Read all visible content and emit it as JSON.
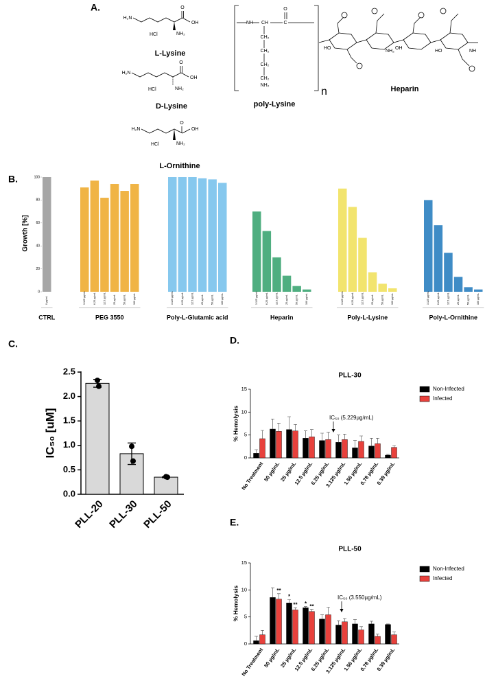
{
  "panel_labels": [
    "A.",
    "B.",
    "C.",
    "D.",
    "E."
  ],
  "structures": [
    {
      "name": "L-Lysine",
      "atoms": [
        "H₂N",
        "O",
        "OH",
        "HCl",
        "NH₂"
      ]
    },
    {
      "name": "D-Lysine",
      "atoms": [
        "H₂N",
        "O",
        "OH",
        "HCl",
        "NH₂"
      ]
    },
    {
      "name": "L-Ornithine",
      "atoms": [
        "H₂N",
        "O",
        "OH",
        "HCl",
        "NH₂"
      ]
    },
    {
      "name": "poly-Lysine",
      "atoms": [
        "NH",
        "CH",
        "C",
        "O",
        "CH₂",
        "CH₂",
        "CH₂",
        "CH₂",
        "NH₂",
        "n"
      ]
    },
    {
      "name": "Heparin",
      "atoms": [
        "HO",
        "NH₂",
        "OH",
        "HO",
        "NH"
      ]
    }
  ],
  "chart_data": [
    {
      "type": "bar",
      "ylabel": "Growth [%]",
      "ylim": [
        0,
        100
      ],
      "yticks": [
        0,
        20,
        40,
        60,
        80,
        100
      ],
      "groups": [
        {
          "name": "CTRL",
          "color": "#a6a6a6",
          "categories": [
            "0 µg/mL"
          ],
          "values": [
            100
          ]
        },
        {
          "name": "PEG 3550",
          "color": "#f0b445",
          "categories": [
            "3.125 µg/mL",
            "6.25 µg/mL",
            "12.5 µg/mL",
            "25 µg/mL",
            "50 µg/mL",
            "100 µg/mL"
          ],
          "values": [
            91,
            97,
            82,
            94,
            88,
            94
          ]
        },
        {
          "name": "Poly-L-Glutamic acid",
          "color": "#86c8ee",
          "categories": [
            "3.125 µg/mL",
            "6.25 µg/mL",
            "12.5 µg/mL",
            "25 µg/mL",
            "50 µg/mL",
            "100 µg/mL"
          ],
          "values": [
            100,
            100,
            100,
            99,
            98,
            95
          ]
        },
        {
          "name": "Heparin",
          "color": "#4fae80",
          "categories": [
            "3.125 µg/mL",
            "6.25 µg/mL",
            "12.5 µg/mL",
            "25 µg/mL",
            "50 µg/mL",
            "100 µg/mL"
          ],
          "values": [
            70,
            53,
            30,
            14,
            5,
            2
          ]
        },
        {
          "name": "Poly-L-Lysine",
          "color": "#f2e46e",
          "categories": [
            "3.125 µg/mL",
            "6.25 µg/mL",
            "12.5 µg/mL",
            "25 µg/mL",
            "50 µg/mL",
            "100 µg/mL"
          ],
          "values": [
            90,
            74,
            47,
            17,
            7,
            3
          ]
        },
        {
          "name": "Poly-L-Ornithine",
          "color": "#3f8cc6",
          "categories": [
            "3.125 µg/mL",
            "6.25 µg/mL",
            "12.5 µg/mL",
            "25 µg/mL",
            "50 µg/mL",
            "100 µg/mL"
          ],
          "values": [
            80,
            58,
            34,
            13,
            4,
            2
          ]
        }
      ]
    },
    {
      "type": "bar",
      "ylabel": "IC₅₀ [uM]",
      "categories": [
        "PLL-20",
        "PLL-30",
        "PLL-50"
      ],
      "values": [
        2.27,
        0.83,
        0.35
      ],
      "errors": [
        0.08,
        0.22,
        0.01
      ],
      "points": [
        [
          2.33,
          2.21
        ],
        [
          0.98,
          0.68
        ],
        [
          0.36,
          0.35
        ]
      ],
      "color": "#d9d9d9",
      "ylim": [
        0,
        2.5
      ],
      "yticks": [
        {
          "value": 0,
          "label": "0.0"
        },
        0.5,
        {
          "value": 1,
          "label": "1.0"
        },
        1.5,
        {
          "value": 2,
          "label": "2.0"
        },
        2.5
      ]
    },
    {
      "type": "bar",
      "title": "PLL-30",
      "ylabel": "% Hemolysis",
      "categories": [
        "No Treatment",
        "50 µg/mL",
        "25 µg/mL",
        "12.5 µg/mL",
        "6.25 µg/mL",
        "3.125 µg/mL",
        "1.56 µg/mL",
        "0.78 µg/mL",
        "0.39 µg/mL"
      ],
      "series": [
        {
          "name": "Non-Infected",
          "color": "#000000",
          "values": [
            1.0,
            6.3,
            6.2,
            4.3,
            3.8,
            3.4,
            2.2,
            2.6,
            0.6
          ],
          "errors": [
            0.8,
            2.2,
            2.8,
            1.6,
            1.6,
            1.6,
            1.6,
            1.7,
            0.2
          ]
        },
        {
          "name": "Infected",
          "color": "#e8413c",
          "values": [
            4.2,
            5.8,
            5.9,
            4.6,
            4.0,
            4.0,
            3.6,
            3.1,
            2.3
          ],
          "errors": [
            1.8,
            1.8,
            1.4,
            1.6,
            1.6,
            1.2,
            1.2,
            1.2,
            0.4
          ]
        }
      ],
      "annotation": "IC₅₀ (5.229µg/mL)",
      "ylim": [
        0,
        15
      ],
      "yticks": [
        0,
        5,
        10,
        15
      ],
      "legend": "right"
    },
    {
      "type": "bar",
      "title": "PLL-50",
      "ylabel": "% Hemolysis",
      "categories": [
        "No Treatment",
        "50 µg/mL",
        "25 µg/mL",
        "12.5 µg/mL",
        "6.25 µg/mL",
        "3.125 µg/mL",
        "1.56 µg/mL",
        "0.78 µg/mL",
        "0.39 µg/mL"
      ],
      "series": [
        {
          "name": "Non-Infected",
          "color": "#000000",
          "values": [
            0.6,
            8.6,
            7.6,
            6.7,
            4.6,
            3.5,
            3.7,
            3.7,
            3.6
          ],
          "errors": [
            0.8,
            1.8,
            0.6,
            0.2,
            0.8,
            0.8,
            0.8,
            0.5,
            0.1
          ],
          "labels": [
            null,
            null,
            "*",
            "*",
            null,
            null,
            null,
            null,
            null
          ]
        },
        {
          "name": "Infected",
          "color": "#e8413c",
          "values": [
            1.7,
            8.3,
            6.3,
            6.0,
            5.4,
            4.1,
            2.6,
            1.4,
            1.7
          ],
          "errors": [
            0.8,
            1.0,
            0.4,
            0.4,
            1.4,
            0.6,
            0.6,
            0.4,
            0.5
          ],
          "labels": [
            null,
            "**",
            "**",
            "**",
            null,
            null,
            null,
            null,
            null
          ]
        }
      ],
      "annotation": "IC₅₀ (3.550µg/mL)",
      "ylim": [
        0,
        15
      ],
      "yticks": [
        0,
        5,
        10,
        15
      ],
      "legend": "right"
    }
  ]
}
